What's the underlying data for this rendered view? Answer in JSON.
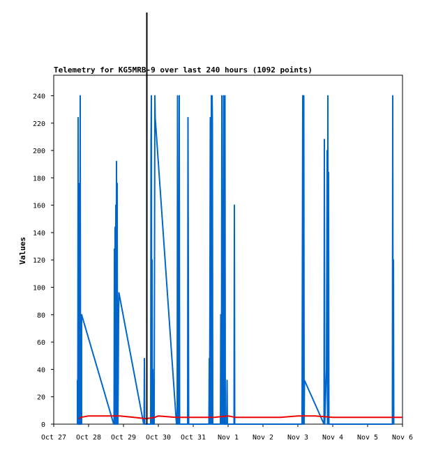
{
  "chart_data": {
    "type": "line",
    "title": "Telemetry for KG5MRB-9 over last 240 hours (1092 points)",
    "ylabel": "Values",
    "xlabel": "",
    "ylim": [
      0,
      255
    ],
    "yticks": [
      0,
      20,
      40,
      60,
      80,
      100,
      120,
      140,
      160,
      180,
      200,
      220,
      240
    ],
    "xlim": [
      0,
      10
    ],
    "xticks": [
      {
        "label": "Oct 27",
        "x": 0
      },
      {
        "label": "Oct 28",
        "x": 1
      },
      {
        "label": "Oct 29",
        "x": 2
      },
      {
        "label": "Oct 30",
        "x": 3
      },
      {
        "label": "Oct 31",
        "x": 4
      },
      {
        "label": "Nov 1",
        "x": 5
      },
      {
        "label": "Nov 2",
        "x": 6
      },
      {
        "label": "Nov 3",
        "x": 7
      },
      {
        "label": "Nov 4",
        "x": 8
      },
      {
        "label": "Nov 5",
        "x": 9
      },
      {
        "label": "Nov 6",
        "x": 10
      }
    ],
    "marker_x": 2.67,
    "grid": false,
    "series": [
      {
        "color": "#0066cc",
        "points": [
          [
            0.68,
            0
          ],
          [
            0.68,
            32
          ],
          [
            0.69,
            0
          ],
          [
            0.7,
            224
          ],
          [
            0.71,
            0
          ],
          [
            0.72,
            176
          ],
          [
            0.73,
            0
          ],
          [
            0.74,
            96
          ],
          [
            0.75,
            104
          ],
          [
            0.75,
            0
          ],
          [
            0.76,
            240
          ],
          [
            0.77,
            0
          ],
          [
            0.77,
            8
          ],
          [
            0.78,
            0
          ],
          [
            0.8,
            0
          ],
          [
            0.8,
            80
          ],
          [
            1.72,
            0
          ],
          [
            1.73,
            0
          ],
          [
            1.74,
            128
          ],
          [
            1.75,
            0
          ],
          [
            1.76,
            144
          ],
          [
            1.77,
            0
          ],
          [
            1.78,
            160
          ],
          [
            1.79,
            0
          ],
          [
            1.8,
            192
          ],
          [
            1.81,
            0
          ],
          [
            1.82,
            176
          ],
          [
            1.83,
            0
          ],
          [
            1.84,
            0
          ],
          [
            1.85,
            32
          ],
          [
            1.86,
            80
          ],
          [
            1.87,
            96
          ],
          [
            2.58,
            0
          ],
          [
            2.59,
            0
          ],
          [
            2.6,
            48
          ],
          [
            2.61,
            0
          ],
          [
            2.65,
            0
          ],
          [
            2.78,
            0
          ],
          [
            2.79,
            208
          ],
          [
            2.8,
            240
          ],
          [
            2.81,
            0
          ],
          [
            2.82,
            120
          ],
          [
            2.83,
            0
          ],
          [
            2.84,
            40
          ],
          [
            2.85,
            0
          ],
          [
            2.88,
            0
          ],
          [
            2.89,
            112
          ],
          [
            2.9,
            240
          ],
          [
            2.91,
            224
          ],
          [
            3.52,
            0
          ],
          [
            3.53,
            0
          ],
          [
            3.54,
            8
          ],
          [
            3.55,
            240
          ],
          [
            3.56,
            0
          ],
          [
            3.57,
            120
          ],
          [
            3.58,
            0
          ],
          [
            3.6,
            240
          ],
          [
            3.61,
            0
          ],
          [
            3.65,
            0
          ],
          [
            3.84,
            0
          ],
          [
            3.85,
            224
          ],
          [
            3.86,
            112
          ],
          [
            3.87,
            0
          ],
          [
            4.45,
            0
          ],
          [
            4.46,
            48
          ],
          [
            4.47,
            0
          ],
          [
            4.49,
            224
          ],
          [
            4.5,
            0
          ],
          [
            4.52,
            240
          ],
          [
            4.53,
            0
          ],
          [
            4.54,
            240
          ],
          [
            4.55,
            224
          ],
          [
            4.56,
            0
          ],
          [
            4.78,
            0
          ],
          [
            4.79,
            80
          ],
          [
            4.8,
            0
          ],
          [
            4.81,
            16
          ],
          [
            4.82,
            240
          ],
          [
            4.83,
            0
          ],
          [
            4.84,
            152
          ],
          [
            4.85,
            0
          ],
          [
            4.87,
            240
          ],
          [
            4.88,
            0
          ],
          [
            4.9,
            0
          ],
          [
            4.91,
            240
          ],
          [
            4.92,
            0
          ],
          [
            4.96,
            0
          ],
          [
            4.97,
            32
          ],
          [
            4.98,
            0
          ],
          [
            5.02,
            0
          ],
          [
            5.17,
            0
          ],
          [
            5.18,
            160
          ],
          [
            5.19,
            0
          ],
          [
            7.12,
            0
          ],
          [
            7.13,
            120
          ],
          [
            7.14,
            240
          ],
          [
            7.15,
            0
          ],
          [
            7.16,
            240
          ],
          [
            7.17,
            240
          ],
          [
            7.18,
            0
          ],
          [
            7.19,
            32
          ],
          [
            7.75,
            0
          ],
          [
            7.76,
            208
          ],
          [
            7.77,
            0
          ],
          [
            7.82,
            40
          ],
          [
            7.83,
            120
          ],
          [
            7.84,
            200
          ],
          [
            7.85,
            0
          ],
          [
            7.86,
            240
          ],
          [
            7.87,
            0
          ],
          [
            7.88,
            184
          ],
          [
            7.89,
            0
          ],
          [
            9.71,
            0
          ],
          [
            9.72,
            240
          ],
          [
            9.73,
            0
          ],
          [
            9.74,
            120
          ],
          [
            9.75,
            0
          ]
        ]
      },
      {
        "color": "#ee0000",
        "points": [
          [
            0.72,
            4
          ],
          [
            0.78,
            5
          ],
          [
            1.0,
            6
          ],
          [
            1.5,
            6
          ],
          [
            1.9,
            6
          ],
          [
            2.3,
            5
          ],
          [
            2.65,
            4
          ],
          [
            2.9,
            5
          ],
          [
            3.0,
            6
          ],
          [
            3.5,
            5
          ],
          [
            4.2,
            5
          ],
          [
            4.6,
            5
          ],
          [
            5.0,
            6
          ],
          [
            5.2,
            5
          ],
          [
            6.0,
            5
          ],
          [
            6.5,
            5
          ],
          [
            7.0,
            6
          ],
          [
            7.5,
            6
          ],
          [
            8.0,
            5
          ],
          [
            9.0,
            5
          ],
          [
            9.75,
            5
          ],
          [
            10.0,
            5
          ]
        ]
      }
    ]
  }
}
